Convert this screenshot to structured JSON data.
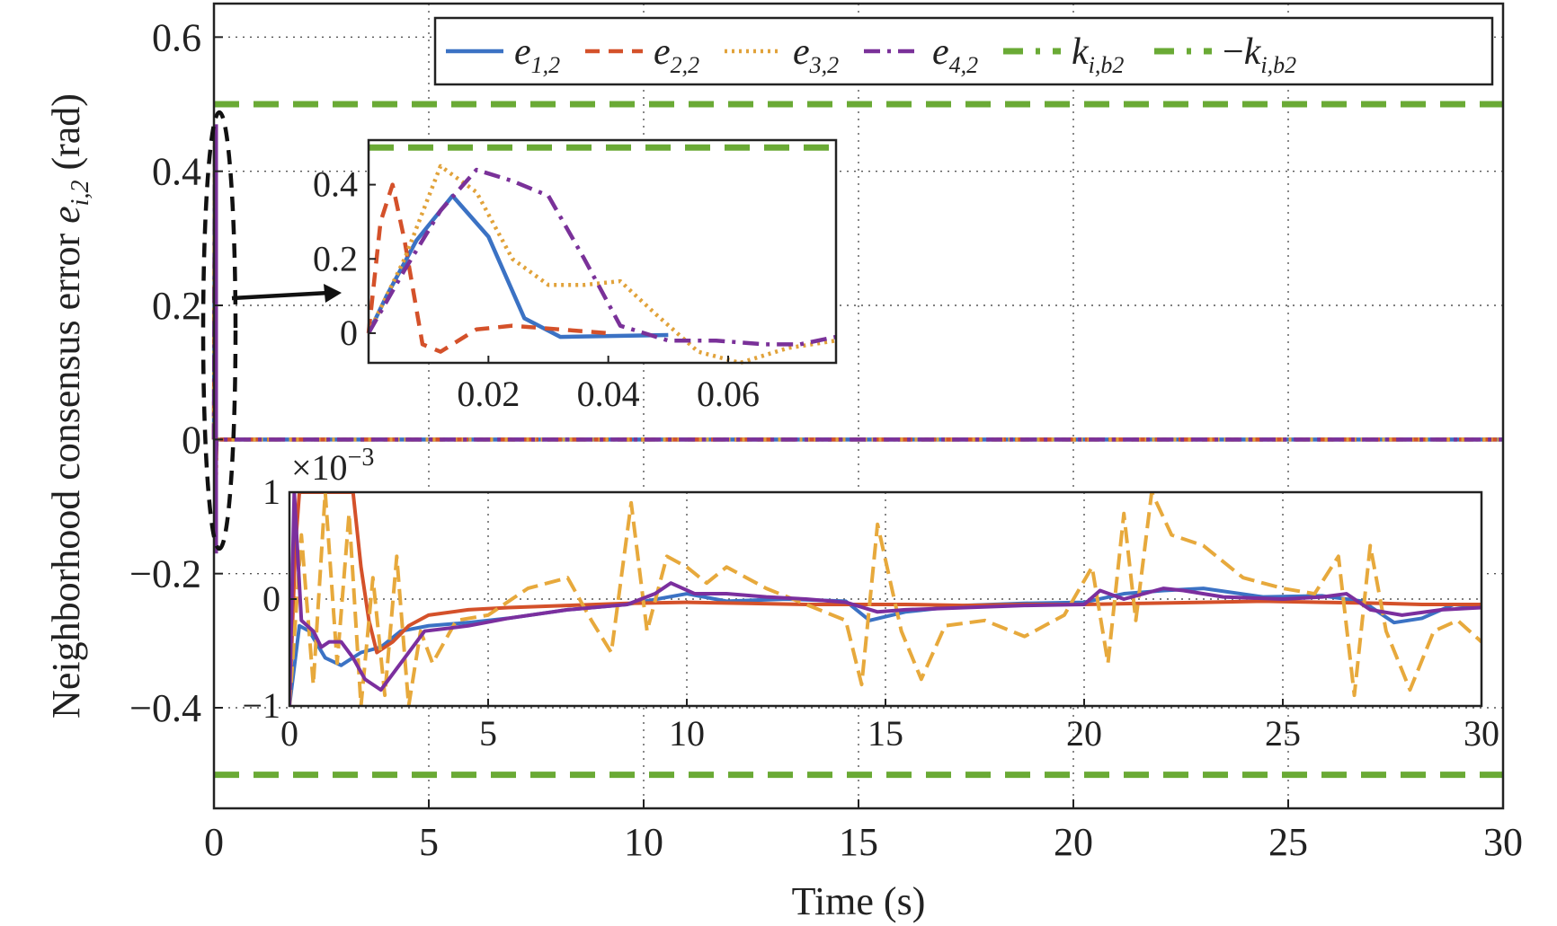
{
  "chart_data": {
    "type": "line",
    "xlabel": "Time (s)",
    "ylabel_prefix": "Neighborhood consensus error ",
    "ylabel_symbol": "e",
    "ylabel_sub": "i,2",
    "ylabel_suffix": " (rad)",
    "xlim": [
      0,
      30
    ],
    "ylim": [
      -0.55,
      0.65
    ],
    "x_ticks": [
      0,
      5,
      10,
      15,
      20,
      25,
      30
    ],
    "x_tick_labels": [
      "0",
      "5",
      "10",
      "15",
      "20",
      "25",
      "30"
    ],
    "y_ticks": [
      -0.4,
      -0.2,
      0,
      0.2,
      0.4,
      0.6
    ],
    "y_tick_labels": [
      "−0.4",
      "−0.2",
      "0",
      "0.2",
      "0.4",
      "0.6"
    ],
    "grid": true,
    "legend_position": "top-right",
    "series": [
      {
        "key": "e12",
        "symbol": "e",
        "sub": "1,2",
        "color": "#3b72c4",
        "style": "solid",
        "x": [
          0,
          0.003,
          0.008,
          0.014,
          0.02,
          0.026,
          0.032,
          0.05,
          0.08,
          1,
          5,
          10,
          15,
          20,
          25,
          30
        ],
        "y": [
          0,
          0.1,
          0.25,
          0.37,
          0.26,
          0.04,
          -0.01,
          -0.005,
          0,
          0,
          0,
          0,
          0,
          0,
          0,
          0
        ]
      },
      {
        "key": "e22",
        "symbol": "e",
        "sub": "2,2",
        "color": "#d4512a",
        "style": "dashed",
        "x": [
          0,
          0.002,
          0.004,
          0.006,
          0.009,
          0.012,
          0.018,
          0.024,
          0.04,
          0.08,
          1,
          5,
          10,
          15,
          20,
          25,
          30
        ],
        "y": [
          0,
          0.3,
          0.4,
          0.25,
          -0.03,
          -0.05,
          0.01,
          0.02,
          0,
          0,
          0,
          0,
          0,
          0,
          0,
          0,
          0
        ]
      },
      {
        "key": "e32",
        "symbol": "e",
        "sub": "3,2",
        "color": "#e1a23a",
        "style": "dotted",
        "x": [
          0,
          0.006,
          0.012,
          0.018,
          0.024,
          0.03,
          0.036,
          0.042,
          0.048,
          0.055,
          0.062,
          0.07,
          0.078,
          1,
          5,
          10,
          15,
          20,
          25,
          30
        ],
        "y": [
          0,
          0.2,
          0.45,
          0.38,
          0.2,
          0.13,
          0.13,
          0.14,
          0.05,
          -0.05,
          -0.08,
          -0.04,
          -0.02,
          0,
          0,
          0,
          0,
          0,
          0,
          0
        ]
      },
      {
        "key": "e42",
        "symbol": "e",
        "sub": "4,2",
        "color": "#7a3199",
        "style": "dashdot",
        "x": [
          0,
          0.006,
          0.012,
          0.018,
          0.024,
          0.03,
          0.036,
          0.042,
          0.05,
          0.058,
          0.066,
          0.072,
          0.078,
          1,
          5,
          10,
          15,
          20,
          25,
          30
        ],
        "y": [
          0,
          0.17,
          0.33,
          0.44,
          0.41,
          0.37,
          0.2,
          0.02,
          -0.02,
          -0.02,
          -0.03,
          -0.03,
          -0.01,
          0,
          0,
          0,
          0,
          0,
          0,
          0
        ]
      },
      {
        "key": "kb2",
        "symbol": "k",
        "sub": "i,b2",
        "prefix": "",
        "color": "#6aaa35",
        "style": "bound",
        "x": [
          0,
          30
        ],
        "y": [
          0.5,
          0.5
        ]
      },
      {
        "key": "nkb2",
        "symbol": "k",
        "sub": "i,b2",
        "prefix": "−",
        "color": "#6aaa35",
        "style": "bound",
        "x": [
          0,
          30
        ],
        "y": [
          -0.5,
          -0.5
        ]
      }
    ],
    "inset_top": {
      "xlim": [
        0,
        0.078
      ],
      "ylim": [
        -0.08,
        0.52
      ],
      "x_ticks": [
        0.02,
        0.04,
        0.06
      ],
      "x_tick_labels": [
        "0.02",
        "0.04",
        "0.06"
      ],
      "y_ticks": [
        0,
        0.2,
        0.4
      ],
      "y_tick_labels": [
        "0",
        "0.2",
        "0.4"
      ]
    },
    "inset_bottom": {
      "xlim": [
        0,
        30
      ],
      "ylim": [
        -1,
        1
      ],
      "multiplier_label": "×10",
      "multiplier_exponent": "−3",
      "x_ticks": [
        0,
        5,
        10,
        15,
        20,
        25,
        30
      ],
      "x_tick_labels": [
        "0",
        "5",
        "10",
        "15",
        "20",
        "25",
        "30"
      ],
      "y_ticks": [
        -1,
        0,
        1
      ],
      "y_tick_labels": [
        "−1",
        "0",
        "1"
      ],
      "series": [
        {
          "key": "e12",
          "color": "#3b72c4",
          "x": [
            0,
            0.25,
            0.5,
            0.9,
            1.3,
            1.8,
            2.3,
            2.8,
            3.5,
            4.5,
            5.5,
            7,
            8.5,
            10,
            11,
            12.5,
            14,
            14.6,
            15.5,
            17,
            18.5,
            20,
            21,
            22,
            23,
            24.5,
            26,
            27,
            27.8,
            28.5,
            29.3,
            30
          ],
          "y": [
            -1,
            -0.25,
            -0.3,
            -0.55,
            -0.62,
            -0.5,
            -0.45,
            -0.3,
            -0.25,
            -0.22,
            -0.18,
            -0.1,
            -0.05,
            0.05,
            -0.02,
            0,
            -0.02,
            -0.2,
            -0.12,
            -0.06,
            -0.04,
            -0.03,
            0.05,
            0.08,
            0.1,
            0.02,
            0.03,
            -0.02,
            -0.22,
            -0.18,
            -0.05,
            -0.08
          ]
        },
        {
          "key": "e22",
          "color": "#d4512a",
          "x": [
            0,
            0.15,
            0.25,
            0.4,
            1.0,
            1.6,
            1.8,
            2.0,
            2.2,
            2.6,
            3.0,
            3.5,
            4.5,
            5.5,
            7,
            8.5,
            10,
            11.5,
            13,
            14.5,
            15.5,
            17,
            18.5,
            20,
            21.5,
            23,
            24.5,
            26,
            27.5,
            28.5,
            30
          ],
          "y": [
            -1,
            0.5,
            1,
            1,
            1,
            1,
            0.3,
            -0.2,
            -0.5,
            -0.4,
            -0.25,
            -0.15,
            -0.1,
            -0.08,
            -0.06,
            -0.04,
            -0.03,
            -0.04,
            -0.05,
            -0.05,
            -0.05,
            -0.06,
            -0.05,
            -0.05,
            -0.04,
            -0.03,
            -0.02,
            -0.03,
            -0.04,
            -0.05,
            -0.05
          ]
        },
        {
          "key": "e32",
          "color": "#e7a93c",
          "x": [
            0,
            0.3,
            0.6,
            0.9,
            1.2,
            1.5,
            1.8,
            2.1,
            2.4,
            2.7,
            3.0,
            3.3,
            3.6,
            4.2,
            5,
            6,
            7,
            7.6,
            8.1,
            8.6,
            9.0,
            9.5,
            10,
            10.5,
            11,
            11.5,
            12,
            13,
            14,
            14.4,
            14.8,
            15.4,
            15.9,
            16.5,
            17.5,
            18.5,
            19.5,
            20.2,
            20.6,
            21,
            21.3,
            21.7,
            22.2,
            23,
            24,
            25,
            25.8,
            26.4,
            26.8,
            27.2,
            27.6,
            28.2,
            28.8,
            29.4,
            30
          ],
          "y": [
            -1,
            0.6,
            -0.8,
            1,
            -0.6,
            0.8,
            -1,
            0.2,
            -0.9,
            0.4,
            -1,
            -0.3,
            -0.6,
            -0.2,
            -0.15,
            0.1,
            0.2,
            -0.2,
            -0.5,
            0.9,
            -0.3,
            0.4,
            0.3,
            0.15,
            0.3,
            0.2,
            0.1,
            -0.05,
            -0.2,
            -0.8,
            0.7,
            -0.3,
            -0.75,
            -0.25,
            -0.2,
            -0.35,
            -0.15,
            0.3,
            -0.6,
            0.8,
            -0.2,
            1,
            0.6,
            0.5,
            0.2,
            0.1,
            0.05,
            0.4,
            -0.9,
            0.5,
            -0.3,
            -0.85,
            -0.3,
            -0.2,
            -0.4
          ]
        },
        {
          "key": "e42",
          "color": "#7b2f9e",
          "x": [
            0,
            0.12,
            0.3,
            0.6,
            0.8,
            1.0,
            1.3,
            1.6,
            1.9,
            2.3,
            2.8,
            3.4,
            4.5,
            5.5,
            7,
            8.5,
            9.2,
            9.6,
            10.2,
            11,
            12,
            13,
            14,
            14.8,
            15.5,
            17,
            18.5,
            20,
            20.4,
            21,
            22,
            22.5,
            23.5,
            25,
            26,
            26.6,
            27.2,
            28,
            29,
            30
          ],
          "y": [
            -1,
            1,
            -0.2,
            -0.3,
            -0.45,
            -0.4,
            -0.4,
            -0.55,
            -0.75,
            -0.85,
            -0.6,
            -0.3,
            -0.25,
            -0.18,
            -0.1,
            -0.05,
            0.05,
            0.15,
            0.05,
            0.05,
            0.02,
            0.0,
            -0.03,
            -0.12,
            -0.1,
            -0.08,
            -0.06,
            -0.05,
            0.08,
            0.0,
            0.1,
            0.08,
            0.02,
            0.0,
            0.02,
            0.05,
            -0.1,
            -0.15,
            -0.1,
            -0.08
          ]
        }
      ]
    }
  }
}
